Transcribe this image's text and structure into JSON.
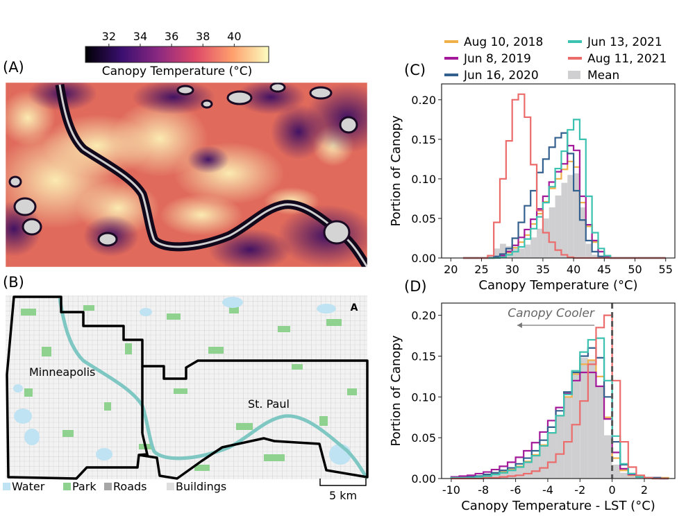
{
  "panels": {
    "a": {
      "label": "(A)",
      "colorbar_title": "Canopy Temperature (°C)",
      "colorbar_ticks": [
        32,
        34,
        36,
        38,
        40
      ],
      "colorbar_range": [
        30.5,
        42.2
      ],
      "colormap": [
        "#000004",
        "#3b0f70",
        "#8c2981",
        "#de4968",
        "#fe9f6d",
        "#fcfdbf"
      ]
    },
    "b": {
      "label": "(B)",
      "city_labels": [
        "Minneapolis",
        "St. Paul"
      ],
      "legend": [
        {
          "name": "Water",
          "color": "#bfe3f2"
        },
        {
          "name": "Park",
          "color": "#8fd18f"
        },
        {
          "name": "Roads",
          "color": "#a6a6a6"
        },
        {
          "name": "Buildings",
          "color": "#dedede"
        }
      ],
      "scale_bar": "5 km",
      "north_arrow": "A"
    },
    "c_label": "(C)",
    "d_label": "(D)"
  },
  "legend": [
    {
      "name": "Aug 10, 2018",
      "color": "#f0b14a",
      "kind": "line"
    },
    {
      "name": "Jun 8, 2019",
      "color": "#a3199a",
      "kind": "line"
    },
    {
      "name": "Jun 16, 2020",
      "color": "#34608f",
      "kind": "line"
    },
    {
      "name": "Jun 13, 2021",
      "color": "#3cc2b0",
      "kind": "line"
    },
    {
      "name": "Aug 11, 2021",
      "color": "#ec6b6b",
      "kind": "line"
    },
    {
      "name": "Mean",
      "color": "#cfcfd1",
      "kind": "patch"
    }
  ],
  "chart_data": [
    {
      "id": "C",
      "type": "histogram",
      "xlabel": "Canopy Temperature (°C)",
      "ylabel": "Portion of Canopy",
      "xlim": [
        18.5,
        56.5
      ],
      "ylim": [
        0,
        0.22
      ],
      "xticks": [
        20,
        25,
        30,
        35,
        40,
        45,
        50,
        55
      ],
      "yticks": [
        "0.00",
        "0.05",
        "0.10",
        "0.15",
        "0.20"
      ],
      "bin_edges": [
        22,
        23,
        24,
        25,
        26,
        27,
        28,
        29,
        30,
        31,
        32,
        33,
        34,
        35,
        36,
        37,
        38,
        39,
        40,
        41,
        42,
        43,
        44,
        45,
        46,
        47,
        48,
        49,
        50,
        51,
        52,
        53,
        54,
        55
      ],
      "mean": [
        0,
        0,
        0,
        0,
        0.003,
        0.012,
        0.018,
        0.015,
        0.012,
        0.012,
        0.017,
        0.026,
        0.037,
        0.05,
        0.064,
        0.079,
        0.095,
        0.105,
        0.107,
        0.064,
        0.018,
        0.004,
        0,
        0,
        0,
        0,
        0,
        0,
        0,
        0,
        0,
        0,
        0
      ],
      "series": [
        {
          "name": "Aug 10, 2018",
          "values": [
            0,
            0,
            0,
            0,
            0,
            0.001,
            0.003,
            0.007,
            0.013,
            0.02,
            0.029,
            0.043,
            0.056,
            0.071,
            0.088,
            0.1,
            0.112,
            0.122,
            0.115,
            0.07,
            0.04,
            0.02,
            0.008,
            0.002,
            0,
            0,
            0,
            0,
            0,
            0,
            0,
            0,
            0
          ]
        },
        {
          "name": "Jun 8, 2019",
          "values": [
            0,
            0,
            0,
            0,
            0,
            0.001,
            0.003,
            0.008,
            0.016,
            0.026,
            0.036,
            0.049,
            0.062,
            0.078,
            0.096,
            0.109,
            0.119,
            0.142,
            0.136,
            0.078,
            0.042,
            0.022,
            0.008,
            0.002,
            0,
            0,
            0,
            0,
            0,
            0,
            0,
            0,
            0
          ]
        },
        {
          "name": "Jun 16, 2020",
          "values": [
            0,
            0,
            0,
            0,
            0,
            0.002,
            0.005,
            0.012,
            0.025,
            0.045,
            0.066,
            0.085,
            0.108,
            0.125,
            0.14,
            0.152,
            0.158,
            0.132,
            0.085,
            0.048,
            0.022,
            0.008,
            0.002,
            0,
            0,
            0,
            0,
            0,
            0,
            0,
            0,
            0,
            0
          ]
        },
        {
          "name": "Jun 13, 2021",
          "values": [
            0,
            0,
            0,
            0,
            0,
            0,
            0.001,
            0.004,
            0.008,
            0.014,
            0.024,
            0.037,
            0.052,
            0.07,
            0.09,
            0.113,
            0.135,
            0.162,
            0.175,
            0.15,
            0.078,
            0.032,
            0.012,
            0.003,
            0,
            0,
            0,
            0,
            0,
            0,
            0,
            0,
            0
          ]
        },
        {
          "name": "Aug 11, 2021",
          "values": [
            0,
            0,
            0,
            0,
            0.003,
            0.045,
            0.1,
            0.148,
            0.2,
            0.207,
            0.178,
            0.118,
            0.06,
            0.032,
            0.02,
            0.01,
            0.004,
            0.001,
            0,
            0,
            0,
            0,
            0,
            0,
            0,
            0,
            0,
            0,
            0,
            0,
            0,
            0,
            0
          ]
        }
      ]
    },
    {
      "id": "D",
      "type": "histogram",
      "xlabel": "Canopy Temperature - LST (°C)",
      "ylabel": "Portion of Canopy",
      "xlim": [
        -10.6,
        3.9
      ],
      "ylim": [
        0,
        0.215
      ],
      "xticks": [
        -10,
        -8,
        -6,
        -4,
        -2,
        0,
        2
      ],
      "yticks": [
        "0.00",
        "0.05",
        "0.10",
        "0.15",
        "0.20"
      ],
      "vline": 0,
      "annotation": "Canopy Cooler",
      "bin_edges": [
        -10,
        -9.5,
        -9,
        -8.5,
        -8,
        -7.5,
        -7,
        -6.5,
        -6,
        -5.5,
        -5,
        -4.5,
        -4,
        -3.5,
        -3,
        -2.5,
        -2,
        -1.5,
        -1,
        -0.5,
        0,
        0.5,
        1,
        1.5,
        2,
        2.5,
        3,
        3.5
      ],
      "mean": [
        0.001,
        0.001,
        0.002,
        0.003,
        0.004,
        0.006,
        0.008,
        0.011,
        0.015,
        0.021,
        0.029,
        0.041,
        0.056,
        0.077,
        0.1,
        0.128,
        0.148,
        0.145,
        0.113,
        0.053,
        0.017,
        0.007,
        0.004,
        0.002,
        0.001,
        0.001,
        0.001
      ],
      "series": [
        {
          "name": "Aug 10, 2018",
          "values": [
            0.001,
            0.001,
            0.002,
            0.003,
            0.004,
            0.006,
            0.008,
            0.011,
            0.015,
            0.021,
            0.029,
            0.041,
            0.056,
            0.077,
            0.1,
            0.128,
            0.14,
            0.145,
            0.125,
            0.075,
            0.025,
            0.01,
            0.004,
            0.002,
            0.001,
            0.001,
            0.001
          ]
        },
        {
          "name": "Jun 8, 2019",
          "values": [
            0.002,
            0.003,
            0.004,
            0.006,
            0.008,
            0.011,
            0.015,
            0.02,
            0.026,
            0.034,
            0.044,
            0.057,
            0.071,
            0.087,
            0.104,
            0.12,
            0.13,
            0.13,
            0.113,
            0.073,
            0.032,
            0.012,
            0.005,
            0.002,
            0.001,
            0.001,
            0
          ]
        },
        {
          "name": "Jun 16, 2020",
          "values": [
            0.001,
            0.001,
            0.002,
            0.003,
            0.005,
            0.007,
            0.01,
            0.013,
            0.018,
            0.025,
            0.034,
            0.047,
            0.063,
            0.083,
            0.106,
            0.13,
            0.15,
            0.16,
            0.148,
            0.1,
            0.045,
            0.017,
            0.006,
            0.002,
            0.001,
            0.001,
            0
          ]
        },
        {
          "name": "Jun 13, 2021",
          "values": [
            0.001,
            0.001,
            0.001,
            0.002,
            0.003,
            0.005,
            0.007,
            0.01,
            0.014,
            0.02,
            0.028,
            0.04,
            0.056,
            0.077,
            0.103,
            0.132,
            0.155,
            0.17,
            0.172,
            0.12,
            0.052,
            0.018,
            0.006,
            0.002,
            0.001,
            0,
            0
          ]
        },
        {
          "name": "Aug 11, 2021",
          "values": [
            0,
            0,
            0,
            0,
            0.001,
            0.001,
            0.002,
            0.003,
            0.004,
            0.006,
            0.009,
            0.013,
            0.02,
            0.03,
            0.045,
            0.066,
            0.095,
            0.14,
            0.185,
            0.2,
            0.12,
            0.045,
            0.014,
            0.004,
            0.001,
            0,
            0
          ]
        }
      ]
    }
  ]
}
